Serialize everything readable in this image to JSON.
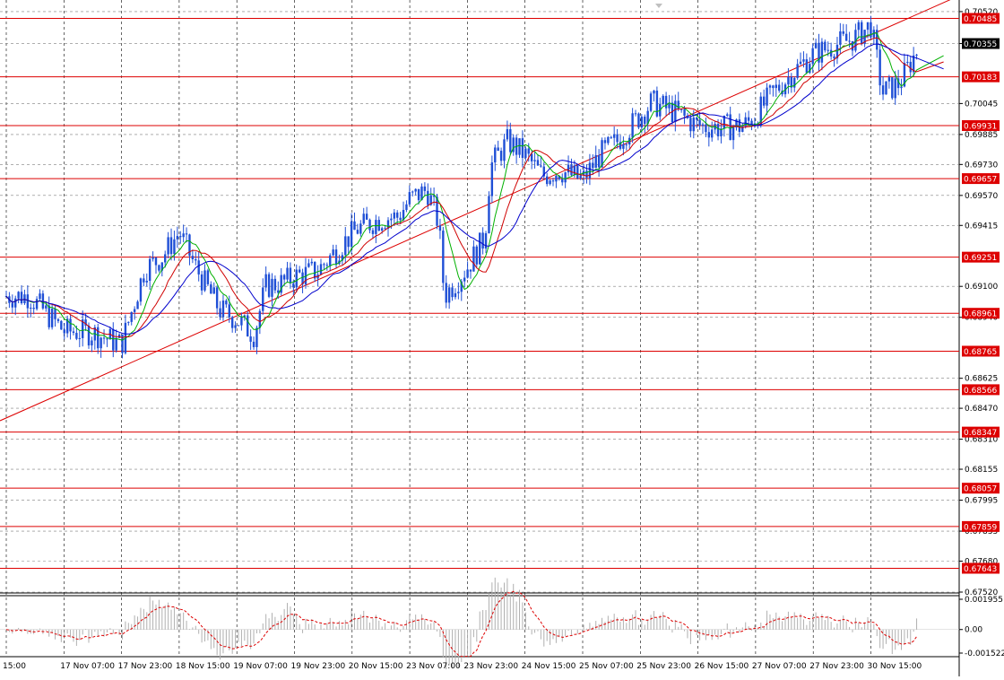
{
  "colors": {
    "background": "#ffffff",
    "grid": "#7f7f7f",
    "candle": "#1f4fd6",
    "level_line": "#dd0000",
    "level_label_bg": "#dd0000",
    "level_label_text": "#ffffff",
    "current_price_bg": "#000000",
    "ma_fast": "#00b000",
    "ma_mid": "#d00000",
    "ma_slow": "#0000cc",
    "osc_hist": "#b0b0b0",
    "osc_signal": "#dd0000"
  },
  "chart_data": [
    {
      "type": "candlestick",
      "title": "",
      "xlabel": "",
      "ylabel": "",
      "ylim": [
        0.6752,
        0.7058
      ],
      "grid": true,
      "x_tick_labels": [
        "15:00",
        "17 Nov 07:00",
        "17 Nov 23:00",
        "18 Nov 15:00",
        "19 Nov 07:00",
        "19 Nov 23:00",
        "20 Nov 15:00",
        "23 Nov 07:00",
        "23 Nov 23:00",
        "24 Nov 15:00",
        "25 Nov 07:00",
        "25 Nov 23:00",
        "26 Nov 15:00",
        "27 Nov 07:00",
        "27 Nov 23:00",
        "30 Nov 15:00"
      ],
      "y_tick_labels": [
        "0.70520",
        "0.70355",
        "0.70045",
        "0.69885",
        "0.69730",
        "0.69570",
        "0.69415",
        "0.69100",
        "0.68940",
        "0.68625",
        "0.68470",
        "0.68310",
        "0.68155",
        "0.67995",
        "0.67835",
        "0.67680",
        "0.67520"
      ],
      "current_price": "0.70355",
      "levels": [
        "0.70485",
        "0.70183",
        "0.69931",
        "0.69657",
        "0.69251",
        "0.68961",
        "0.68765",
        "0.68566",
        "0.68347",
        "0.68057",
        "0.67859",
        "0.67643"
      ],
      "trendline": {
        "start": [
          "15:00",
          0.6842
        ],
        "end": [
          "30 Nov 15:00",
          0.704
        ]
      },
      "price_path": [
        [
          0,
          0.6905
        ],
        [
          0.4,
          0.6905
        ],
        [
          1.0,
          0.6887
        ],
        [
          1.5,
          0.6886
        ],
        [
          2.0,
          0.688
        ],
        [
          2.4,
          0.6919
        ],
        [
          2.7,
          0.6925
        ],
        [
          3.0,
          0.6938
        ],
        [
          3.3,
          0.6919
        ],
        [
          3.7,
          0.6898
        ],
        [
          4.0,
          0.6893
        ],
        [
          4.3,
          0.6885
        ],
        [
          4.5,
          0.691
        ],
        [
          4.8,
          0.6912
        ],
        [
          5.0,
          0.6915
        ],
        [
          5.4,
          0.6918
        ],
        [
          5.8,
          0.6931
        ],
        [
          6.1,
          0.694
        ],
        [
          6.5,
          0.6945
        ],
        [
          6.8,
          0.6946
        ],
        [
          7.0,
          0.6955
        ],
        [
          7.3,
          0.696
        ],
        [
          7.5,
          0.6943
        ],
        [
          7.6,
          0.6905
        ],
        [
          8.0,
          0.692
        ],
        [
          8.3,
          0.6935
        ],
        [
          8.4,
          0.6972
        ],
        [
          8.7,
          0.6985
        ],
        [
          9.0,
          0.6978
        ],
        [
          9.3,
          0.6967
        ],
        [
          9.6,
          0.697
        ],
        [
          10.0,
          0.6965
        ],
        [
          10.3,
          0.6978
        ],
        [
          10.6,
          0.6985
        ],
        [
          10.9,
          0.6995
        ],
        [
          11.2,
          0.7005
        ],
        [
          11.6,
          0.7
        ],
        [
          12.0,
          0.6993
        ],
        [
          12.4,
          0.6992
        ],
        [
          12.8,
          0.6993
        ],
        [
          13.0,
          0.6998
        ],
        [
          13.3,
          0.701
        ],
        [
          13.7,
          0.7022
        ],
        [
          14.0,
          0.703
        ],
        [
          14.4,
          0.7035
        ],
        [
          14.7,
          0.7038
        ],
        [
          15.0,
          0.7045
        ],
        [
          15.2,
          0.701
        ],
        [
          15.5,
          0.7015
        ],
        [
          15.8,
          0.7032
        ]
      ],
      "moving_averages": [
        {
          "period_color": "ma_fast",
          "lag": 0.35
        },
        {
          "period_color": "ma_mid",
          "lag": 0.75
        },
        {
          "period_color": "ma_slow",
          "lag": 1.2
        }
      ]
    },
    {
      "type": "oscillator",
      "title": "",
      "ylim": [
        -0.001522,
        0.001955
      ],
      "y_tick_labels": [
        "0.001955",
        "0.00",
        "-0.001522"
      ]
    }
  ]
}
